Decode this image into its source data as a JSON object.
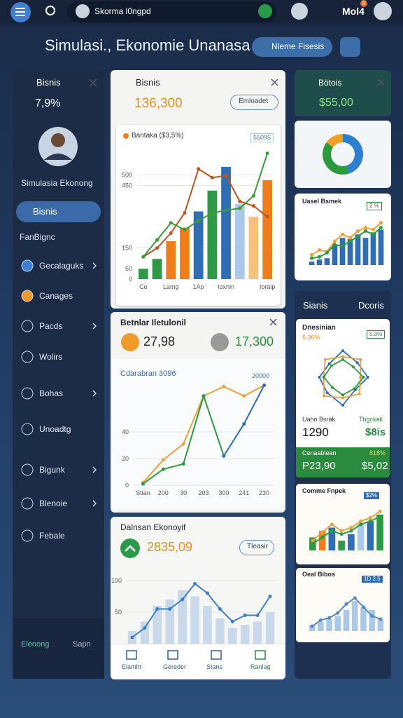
{
  "topbar": {
    "search": "Skorma l0ngpd",
    "user": "Mol4",
    "badge": "5"
  },
  "header": {
    "title": "Simulasi., Ekonomie Unanasa",
    "button": "Nleme Fisesis"
  },
  "sidebar": {
    "title": "Bisnis",
    "stat": "7,9%",
    "profile": "Simulasia Ekonong",
    "active": "Bisnis",
    "section": "FanBignc",
    "items": [
      "Gecalaguks",
      "Canages",
      "Pacds",
      "Wolirs",
      "Bohas",
      "Unoadtg",
      "Bigunk",
      "Blenoie",
      "Febale"
    ],
    "nav": [
      "Elenong",
      "Sapn"
    ]
  },
  "main": {
    "title": "Bisnis",
    "value": "136,300",
    "button": "Emloadet",
    "chart": {
      "type": "bar",
      "legend": "Bantaka ($3,5%)",
      "badge": "55095",
      "categories": [
        "Co",
        null,
        "Lamg",
        null,
        "1Ap",
        null,
        "Ioxnin",
        null,
        null,
        "Ioraip"
      ],
      "ylim": [
        0,
        650
      ],
      "yticks": [
        0,
        50,
        150,
        450,
        500
      ],
      "series": [
        {
          "kind": "bar",
          "colors": [
            "#2e9a46",
            "#2e9a46",
            "#f07d1a",
            "#f07d1a",
            "#2f6db5",
            "#2e9a46",
            "#2f6db5",
            "#a9c8ea",
            "#f6c27a",
            "#f07d1a"
          ],
          "values": [
            49,
            97,
            182,
            247,
            325,
            425,
            539,
            360,
            300,
            475
          ]
        },
        {
          "kind": "line",
          "color": "#c0521f",
          "values": [
            107,
            149,
            221,
            318,
            529,
            487,
            497,
            373,
            351,
            300
          ]
        },
        {
          "kind": "line",
          "color": "#3a9a3a",
          "values": [
            107,
            188,
            270,
            237,
            280,
            318,
            330,
            340,
            400,
            604
          ]
        }
      ]
    }
  },
  "compare": {
    "title": "Betnlar Iletulonil",
    "left_value": "27,98",
    "right_value": "17,300",
    "chart": {
      "type": "line",
      "label": "Cdarabran 3096",
      "badge": "20000",
      "categories": [
        "Stian",
        "200",
        "30",
        "203",
        "300",
        "241",
        "230"
      ],
      "ylim": [
        0,
        80
      ],
      "yticks": [
        0,
        20,
        40
      ],
      "series": [
        {
          "kind": "line",
          "color": "#e9a23b",
          "values": [
            2,
            19,
            31,
            67,
            74,
            67,
            75
          ]
        },
        {
          "kind": "line",
          "color": "#2e9a3e",
          "values": [
            1,
            12,
            16,
            67,
            22,
            null,
            null
          ]
        },
        {
          "kind": "line",
          "color": "#2f6db5",
          "values": [
            null,
            null,
            null,
            null,
            22,
            46,
            75
          ]
        }
      ]
    }
  },
  "economy": {
    "title": "Dalnsan Ekonoyif",
    "value": "2835,09",
    "button": "Tleasir",
    "chart": {
      "type": "bar",
      "ylim": [
        0,
        120
      ],
      "yticks": [
        50,
        100
      ],
      "series": [
        {
          "kind": "bar",
          "color": "#c9d9ea",
          "values": [
            20,
            35,
            60,
            70,
            85,
            75,
            60,
            40,
            25,
            30,
            35,
            50
          ]
        },
        {
          "kind": "line",
          "color": "#3f7fc0",
          "values": [
            10,
            25,
            55,
            55,
            70,
            95,
            80,
            55,
            35,
            45,
            45,
            75
          ]
        }
      ]
    }
  },
  "bottom_nav": [
    "Elamht",
    "Gereder",
    "Stans",
    "Ranlag"
  ],
  "right": {
    "balance": {
      "title": "Bötois",
      "value": "$55,00"
    },
    "donut": {
      "type": "pie",
      "values": [
        45,
        40,
        15
      ],
      "colors": [
        "#2f7fd0",
        "#2e9a3e",
        "#f0a020"
      ]
    },
    "mini1": {
      "title": "Uasel Bsmek",
      "badge": "2 %",
      "chart": {
        "type": "bar",
        "ylim": [
          0,
          70
        ],
        "series": [
          {
            "kind": "bar",
            "color": "#2f6db5",
            "values": [
              5,
              8,
              10,
              30,
              40,
              38,
              45,
              40,
              48,
              52
            ]
          },
          {
            "kind": "line",
            "color": "#e9a23b",
            "values": [
              15,
              22,
              20,
              35,
              45,
              40,
              50,
              55,
              52,
              62
            ]
          },
          {
            "kind": "line",
            "color": "#2e9a3e",
            "values": [
              10,
              12,
              18,
              30,
              28,
              35,
              42,
              50,
              45,
              55
            ]
          }
        ]
      }
    },
    "panel": {
      "left": "Sianis",
      "right": "Dcoris"
    },
    "radar": {
      "title": "Dnesinian",
      "subtitle": "6.36%",
      "badge": "5.3%",
      "chart": {
        "type": "radar",
        "rlim": [
          0,
          100
        ],
        "series": [
          {
            "color": "#2f6db5",
            "values": [
              90,
              70,
              85,
              60,
              95,
              75,
              80,
              65
            ]
          },
          {
            "color": "#e9a23b",
            "values": [
              70,
              85,
              60,
              80,
              70,
              90,
              65,
              85
            ]
          },
          {
            "color": "#2e9a3e",
            "values": [
              60,
              50,
              70,
              55,
              60,
              50,
              65,
              55
            ]
          }
        ]
      },
      "stat_label": "Uaho Bsrak",
      "stat_value": "1290",
      "stat2_label": "Thgckak",
      "stat2_value": "$8is",
      "footer_label": "Cenaablean",
      "footer_pct": "818%",
      "footer_left": "P23,90",
      "footer_right": "$5,02"
    },
    "mini2": {
      "title": "Comme Fnpek",
      "badge": "$2%",
      "chart": {
        "type": "bar",
        "ylim": [
          0,
          70
        ],
        "series": [
          {
            "kind": "bar",
            "colors": [
              "#2e9a46",
              "#f07d1a",
              "#2f6db5",
              "#2e9a46",
              "#2f6db5",
              "#a9c8ea",
              "#2f6db5",
              "#2e9a46"
            ],
            "values": [
              20,
              30,
              35,
              15,
              25,
              40,
              45,
              55
            ]
          },
          {
            "kind": "line",
            "color": "#e9a23b",
            "values": [
              15,
              28,
              40,
              30,
              35,
              45,
              50,
              60
            ]
          },
          {
            "kind": "line",
            "color": "#2e9a3e",
            "values": [
              10,
              20,
              30,
              25,
              30,
              40,
              45,
              52
            ]
          }
        ]
      }
    },
    "mini3": {
      "title": "Oeal Bibos",
      "badge": "1D 2.5",
      "chart": {
        "type": "bar",
        "ylim": [
          0,
          70
        ],
        "series": [
          {
            "kind": "bar",
            "color": "#a9c8ea",
            "values": [
              10,
              15,
              20,
              25,
              35,
              50,
              40,
              35,
              20
            ]
          },
          {
            "kind": "line",
            "color": "#5a8ac0",
            "values": [
              8,
              18,
              22,
              30,
              45,
              55,
              40,
              25,
              20
            ]
          }
        ]
      }
    }
  }
}
